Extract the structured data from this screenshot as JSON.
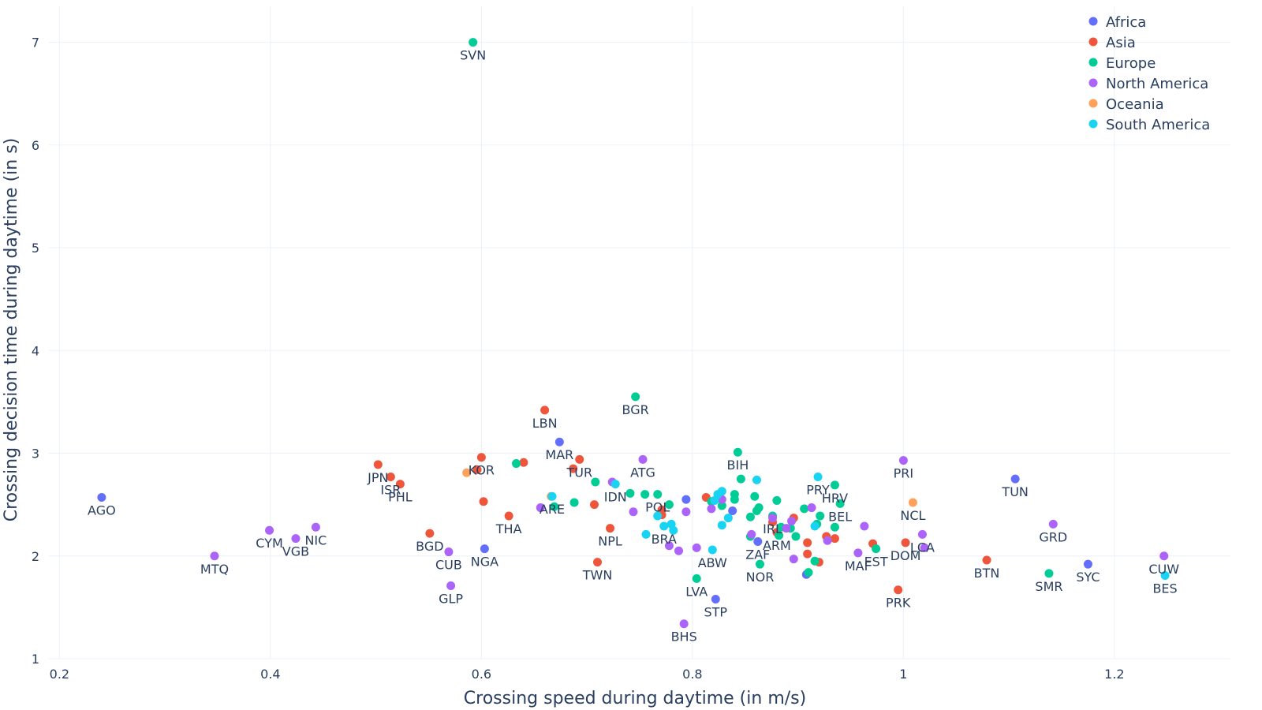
{
  "chart_data": {
    "type": "scatter",
    "title": "",
    "xlabel": "Crossing speed during daytime (in m/s)",
    "ylabel": "Crossing decision time during daytime (in s)",
    "xlim": [
      0.19,
      1.31
    ],
    "ylim": [
      1,
      7.35
    ],
    "xticks": [
      0.2,
      0.4,
      0.6,
      0.8,
      1,
      1.2
    ],
    "xtick_labels": [
      "0.2",
      "0.4",
      "0.6",
      "0.8",
      "1",
      "1.2"
    ],
    "yticks": [
      1,
      2,
      3,
      4,
      5,
      6,
      7
    ],
    "ytick_labels": [
      "1",
      "2",
      "3",
      "4",
      "5",
      "6",
      "7"
    ],
    "legend_position": "top-right",
    "series": [
      {
        "name": "Africa",
        "color": "#636efa",
        "points": [
          {
            "x": 0.24,
            "y": 2.57,
            "label": "AGO"
          },
          {
            "x": 0.603,
            "y": 2.07,
            "label": "NGA"
          },
          {
            "x": 0.674,
            "y": 3.11,
            "label": "MAR"
          },
          {
            "x": 1.106,
            "y": 2.75,
            "label": "TUN"
          },
          {
            "x": 1.175,
            "y": 1.92,
            "label": "SYC"
          },
          {
            "x": 0.822,
            "y": 1.58,
            "label": "STP"
          },
          {
            "x": 0.862,
            "y": 2.14,
            "label": "ZAF"
          },
          {
            "x": 0.794,
            "y": 2.55,
            "label": ""
          },
          {
            "x": 0.838,
            "y": 2.44,
            "label": ""
          },
          {
            "x": 0.908,
            "y": 1.82,
            "label": ""
          }
        ]
      },
      {
        "name": "Asia",
        "color": "#ef553b",
        "points": [
          {
            "x": 0.502,
            "y": 2.89,
            "label": "JPN"
          },
          {
            "x": 0.514,
            "y": 2.77,
            "label": "ISR"
          },
          {
            "x": 0.523,
            "y": 2.7,
            "label": "PHL"
          },
          {
            "x": 0.6,
            "y": 2.96,
            "label": "KOR"
          },
          {
            "x": 0.551,
            "y": 2.22,
            "label": "BGD"
          },
          {
            "x": 0.626,
            "y": 2.39,
            "label": "THA"
          },
          {
            "x": 0.66,
            "y": 3.42,
            "label": "LBN"
          },
          {
            "x": 0.693,
            "y": 2.94,
            "label": "TUR"
          },
          {
            "x": 0.71,
            "y": 1.94,
            "label": "TWN"
          },
          {
            "x": 0.722,
            "y": 2.27,
            "label": "NPL"
          },
          {
            "x": 0.995,
            "y": 1.67,
            "label": "PRK"
          },
          {
            "x": 1.079,
            "y": 1.96,
            "label": "BTN"
          },
          {
            "x": 0.88,
            "y": 2.23,
            "label": "ARM"
          },
          {
            "x": 1.002,
            "y": 2.13,
            "label": "DOM"
          },
          {
            "x": 0.596,
            "y": 2.84,
            "label": ""
          },
          {
            "x": 0.602,
            "y": 2.53,
            "label": ""
          },
          {
            "x": 0.64,
            "y": 2.91,
            "label": ""
          },
          {
            "x": 0.687,
            "y": 2.85,
            "label": ""
          },
          {
            "x": 0.707,
            "y": 2.5,
            "label": ""
          },
          {
            "x": 0.771,
            "y": 2.4,
            "label": ""
          },
          {
            "x": 0.771,
            "y": 2.45,
            "label": ""
          },
          {
            "x": 0.813,
            "y": 2.57,
            "label": ""
          },
          {
            "x": 0.876,
            "y": 2.33,
            "label": ""
          },
          {
            "x": 0.896,
            "y": 2.37,
            "label": ""
          },
          {
            "x": 0.909,
            "y": 2.02,
            "label": ""
          },
          {
            "x": 0.909,
            "y": 2.13,
            "label": ""
          },
          {
            "x": 0.92,
            "y": 1.94,
            "label": ""
          },
          {
            "x": 0.927,
            "y": 2.19,
            "label": ""
          },
          {
            "x": 0.935,
            "y": 2.17,
            "label": ""
          },
          {
            "x": 0.971,
            "y": 2.12,
            "label": ""
          }
        ]
      },
      {
        "name": "Europe",
        "color": "#00cc96",
        "points": [
          {
            "x": 0.592,
            "y": 7.0,
            "label": "SVN"
          },
          {
            "x": 0.746,
            "y": 3.55,
            "label": "BGR"
          },
          {
            "x": 0.843,
            "y": 3.01,
            "label": "BIH"
          },
          {
            "x": 0.935,
            "y": 2.69,
            "label": "HRV"
          },
          {
            "x": 0.94,
            "y": 2.51,
            "label": "BEL"
          },
          {
            "x": 0.974,
            "y": 2.07,
            "label": "EST"
          },
          {
            "x": 0.864,
            "y": 1.92,
            "label": "NOR"
          },
          {
            "x": 0.804,
            "y": 1.78,
            "label": "LVA"
          },
          {
            "x": 1.138,
            "y": 1.83,
            "label": "SMR"
          },
          {
            "x": 0.767,
            "y": 2.6,
            "label": "POL"
          },
          {
            "x": 0.876,
            "y": 2.39,
            "label": "IRL"
          },
          {
            "x": 0.633,
            "y": 2.9,
            "label": ""
          },
          {
            "x": 0.669,
            "y": 2.48,
            "label": ""
          },
          {
            "x": 0.688,
            "y": 2.52,
            "label": ""
          },
          {
            "x": 0.708,
            "y": 2.72,
            "label": ""
          },
          {
            "x": 0.741,
            "y": 2.61,
            "label": ""
          },
          {
            "x": 0.755,
            "y": 2.6,
            "label": ""
          },
          {
            "x": 0.778,
            "y": 2.5,
            "label": ""
          },
          {
            "x": 0.818,
            "y": 2.53,
            "label": ""
          },
          {
            "x": 0.828,
            "y": 2.49,
            "label": ""
          },
          {
            "x": 0.84,
            "y": 2.6,
            "label": ""
          },
          {
            "x": 0.84,
            "y": 2.55,
            "label": ""
          },
          {
            "x": 0.846,
            "y": 2.75,
            "label": ""
          },
          {
            "x": 0.855,
            "y": 2.38,
            "label": ""
          },
          {
            "x": 0.855,
            "y": 2.19,
            "label": ""
          },
          {
            "x": 0.859,
            "y": 2.58,
            "label": ""
          },
          {
            "x": 0.861,
            "y": 2.44,
            "label": ""
          },
          {
            "x": 0.863,
            "y": 2.47,
            "label": ""
          },
          {
            "x": 0.88,
            "y": 2.54,
            "label": ""
          },
          {
            "x": 0.882,
            "y": 2.2,
            "label": ""
          },
          {
            "x": 0.884,
            "y": 2.28,
            "label": ""
          },
          {
            "x": 0.893,
            "y": 2.27,
            "label": ""
          },
          {
            "x": 0.898,
            "y": 2.19,
            "label": ""
          },
          {
            "x": 0.906,
            "y": 2.46,
            "label": ""
          },
          {
            "x": 0.91,
            "y": 1.84,
            "label": ""
          },
          {
            "x": 0.916,
            "y": 1.95,
            "label": ""
          },
          {
            "x": 0.918,
            "y": 2.31,
            "label": ""
          },
          {
            "x": 0.921,
            "y": 2.39,
            "label": ""
          },
          {
            "x": 0.935,
            "y": 2.28,
            "label": ""
          }
        ]
      },
      {
        "name": "North America",
        "color": "#ab63fa",
        "points": [
          {
            "x": 0.347,
            "y": 2.0,
            "label": "MTQ"
          },
          {
            "x": 0.399,
            "y": 2.25,
            "label": "CYM"
          },
          {
            "x": 0.424,
            "y": 2.17,
            "label": "VGB"
          },
          {
            "x": 0.443,
            "y": 2.28,
            "label": "NIC"
          },
          {
            "x": 0.569,
            "y": 2.04,
            "label": "CUB"
          },
          {
            "x": 0.571,
            "y": 1.71,
            "label": "GLP"
          },
          {
            "x": 0.753,
            "y": 2.94,
            "label": "ATG"
          },
          {
            "x": 0.792,
            "y": 1.34,
            "label": "BHS"
          },
          {
            "x": 1.0,
            "y": 2.93,
            "label": "PRI"
          },
          {
            "x": 1.142,
            "y": 2.31,
            "label": "GRD"
          },
          {
            "x": 1.247,
            "y": 2.0,
            "label": "CUW"
          },
          {
            "x": 1.018,
            "y": 2.21,
            "label": "LCA"
          },
          {
            "x": 0.957,
            "y": 2.03,
            "label": "MAF"
          },
          {
            "x": 0.656,
            "y": 2.47,
            "label": ""
          },
          {
            "x": 0.724,
            "y": 2.72,
            "label": ""
          },
          {
            "x": 0.744,
            "y": 2.43,
            "label": ""
          },
          {
            "x": 0.778,
            "y": 2.1,
            "label": ""
          },
          {
            "x": 0.787,
            "y": 2.05,
            "label": ""
          },
          {
            "x": 0.794,
            "y": 2.43,
            "label": ""
          },
          {
            "x": 0.804,
            "y": 2.08,
            "label": ""
          },
          {
            "x": 0.818,
            "y": 2.46,
            "label": ""
          },
          {
            "x": 0.828,
            "y": 2.55,
            "label": ""
          },
          {
            "x": 0.856,
            "y": 2.21,
            "label": ""
          },
          {
            "x": 0.876,
            "y": 2.37,
            "label": ""
          },
          {
            "x": 0.889,
            "y": 2.27,
            "label": ""
          },
          {
            "x": 0.894,
            "y": 2.34,
            "label": ""
          },
          {
            "x": 0.896,
            "y": 1.97,
            "label": ""
          },
          {
            "x": 0.913,
            "y": 2.47,
            "label": ""
          },
          {
            "x": 0.928,
            "y": 2.15,
            "label": ""
          },
          {
            "x": 0.963,
            "y": 2.29,
            "label": ""
          },
          {
            "x": 1.02,
            "y": 2.08,
            "label": ""
          }
        ]
      },
      {
        "name": "Oceania",
        "color": "#ffa15a",
        "points": [
          {
            "x": 1.009,
            "y": 2.52,
            "label": "NCL"
          },
          {
            "x": 0.586,
            "y": 2.81,
            "label": ""
          },
          {
            "x": 0.666,
            "y": 2.58,
            "label": ""
          }
        ]
      },
      {
        "name": "South America",
        "color": "#19d3f3",
        "points": [
          {
            "x": 0.667,
            "y": 2.58,
            "label": "ARE"
          },
          {
            "x": 0.773,
            "y": 2.29,
            "label": "BRA"
          },
          {
            "x": 0.819,
            "y": 2.06,
            "label": "ABW"
          },
          {
            "x": 0.919,
            "y": 2.77,
            "label": "PRY"
          },
          {
            "x": 1.248,
            "y": 1.81,
            "label": "BES"
          },
          {
            "x": 0.727,
            "y": 2.7,
            "label": "IDN"
          },
          {
            "x": 0.756,
            "y": 2.21,
            "label": ""
          },
          {
            "x": 0.767,
            "y": 2.39,
            "label": ""
          },
          {
            "x": 0.78,
            "y": 2.31,
            "label": ""
          },
          {
            "x": 0.782,
            "y": 2.25,
            "label": ""
          },
          {
            "x": 0.821,
            "y": 2.54,
            "label": ""
          },
          {
            "x": 0.824,
            "y": 2.6,
            "label": ""
          },
          {
            "x": 0.828,
            "y": 2.63,
            "label": ""
          },
          {
            "x": 0.828,
            "y": 2.3,
            "label": ""
          },
          {
            "x": 0.834,
            "y": 2.37,
            "label": ""
          },
          {
            "x": 0.861,
            "y": 2.74,
            "label": ""
          },
          {
            "x": 0.916,
            "y": 2.29,
            "label": ""
          }
        ]
      }
    ]
  }
}
